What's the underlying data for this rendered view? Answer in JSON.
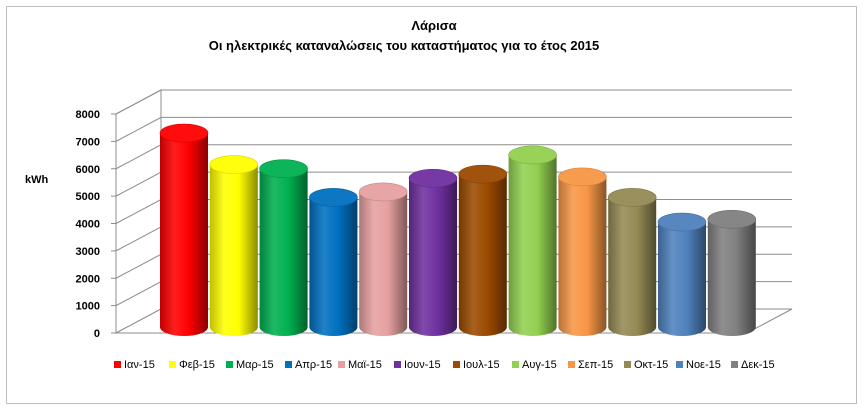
{
  "chart_data": {
    "type": "bar",
    "title": "Λάρισα",
    "subtitle": "Οι ηλεκτρικές καταναλώσεις του καταστήματος για το έτος 2015",
    "ylabel": "kWh",
    "ylim": [
      0,
      8000
    ],
    "yticks": [
      "0",
      "1000",
      "2000",
      "3000",
      "4000",
      "5000",
      "6000",
      "7000",
      "8000"
    ],
    "grid": true,
    "legend_position": "bottom",
    "categories": [
      "Ιαν-15",
      "Φεβ-15",
      "Μαρ-15",
      "Απρ-15",
      "Μαϊ-15",
      "Ιουν-15",
      "Ιουλ-15",
      "Αυγ-15",
      "Σεπ-15",
      "Οκτ-15",
      "Νοε-15",
      "Δεκ-15"
    ],
    "values": [
      7150,
      6000,
      5850,
      4800,
      5000,
      5500,
      5650,
      6350,
      5550,
      4800,
      3900,
      4000
    ],
    "colors": [
      "#ff0000",
      "#ffff00",
      "#00b050",
      "#0070c0",
      "#e6a0a0",
      "#7030a0",
      "#9c4a00",
      "#92d050",
      "#f79646",
      "#948a54",
      "#4f81bd",
      "#808080"
    ]
  }
}
